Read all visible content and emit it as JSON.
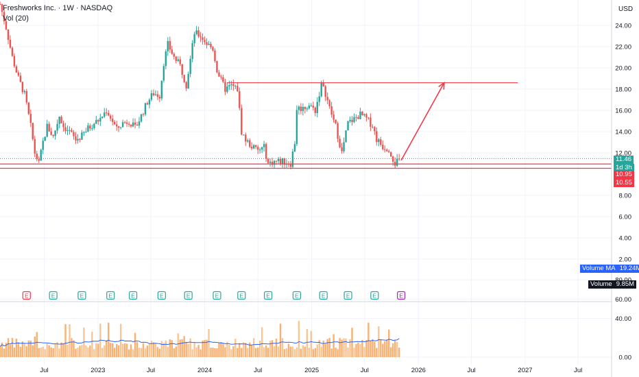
{
  "header": {
    "symbol_title": "Freshworks Inc. · 1W · NASDAQ",
    "volume_indicator": "Vol (20)",
    "currency": "USD"
  },
  "price_axis": {
    "labels": [
      "24.00",
      "22.00",
      "20.00",
      "18.00",
      "16.00",
      "14.00",
      "12.00",
      "8.00",
      "6.00",
      "4.00",
      "2.00"
    ]
  },
  "volume_axis": {
    "labels": [
      "80.00",
      "60.00",
      "40.00",
      "0.00"
    ]
  },
  "time_axis": {
    "labels": [
      "Jul",
      "2023",
      "Jul",
      "2024",
      "Jul",
      "2025",
      "Jul",
      "2026",
      "Jul",
      "2027",
      "Jul"
    ]
  },
  "price_badges": {
    "last_price": "11.46",
    "countdown": "1d 3h",
    "level_upper": "10.95",
    "level_lower": "10.55"
  },
  "volume_badges": {
    "ma_label": "Volume MA",
    "ma_value": "19.24M",
    "vol_label": "Volume",
    "vol_value": "9.85M"
  },
  "earnings_marker": "E",
  "colors": {
    "up": "#26a69a",
    "down": "#ef5350",
    "drawing": "#f23645",
    "volume_up": "#f7c08a",
    "volume_ma": "#2962ff",
    "vol_badge_bg": "#131722",
    "ma_badge_bg": "#2962ff",
    "earnings": "#26a69a"
  },
  "chart_data": {
    "type": "candlestick",
    "price_range": [
      8,
      24.6
    ],
    "date_range": [
      "2022-01-31",
      "2027-12-31"
    ],
    "price_anchors": [
      [
        "2022-01-31",
        26.0
      ],
      [
        "2022-02-21",
        23.8
      ],
      [
        "2022-03-14",
        21.0
      ],
      [
        "2022-04-04",
        19.0
      ],
      [
        "2022-04-25",
        17.5
      ],
      [
        "2022-05-16",
        14.5
      ],
      [
        "2022-05-30",
        12.0
      ],
      [
        "2022-06-13",
        11.0
      ],
      [
        "2022-06-27",
        13.0
      ],
      [
        "2022-07-11",
        14.5
      ],
      [
        "2022-08-01",
        13.5
      ],
      [
        "2022-08-22",
        15.5
      ],
      [
        "2022-09-05",
        14.5
      ],
      [
        "2022-09-26",
        14.0
      ],
      [
        "2022-10-17",
        13.2
      ],
      [
        "2022-11-07",
        13.6
      ],
      [
        "2022-11-28",
        14.3
      ],
      [
        "2022-12-19",
        14.8
      ],
      [
        "2023-01-09",
        15.2
      ],
      [
        "2023-01-30",
        16.0
      ],
      [
        "2023-02-20",
        15.0
      ],
      [
        "2023-03-06",
        14.2
      ],
      [
        "2023-03-27",
        14.8
      ],
      [
        "2023-04-17",
        15.0
      ],
      [
        "2023-05-08",
        14.3
      ],
      [
        "2023-05-29",
        15.5
      ],
      [
        "2023-06-19",
        16.8
      ],
      [
        "2023-07-10",
        17.6
      ],
      [
        "2023-07-31",
        17.4
      ],
      [
        "2023-08-14",
        20.5
      ],
      [
        "2023-08-28",
        22.2
      ],
      [
        "2023-09-18",
        21.0
      ],
      [
        "2023-10-09",
        20.2
      ],
      [
        "2023-10-30",
        18.4
      ],
      [
        "2023-11-13",
        20.8
      ],
      [
        "2023-11-27",
        23.3
      ],
      [
        "2023-12-18",
        23.0
      ],
      [
        "2024-01-08",
        22.3
      ],
      [
        "2024-01-29",
        21.8
      ],
      [
        "2024-02-12",
        19.8
      ],
      [
        "2024-02-26",
        18.8
      ],
      [
        "2024-03-11",
        18.0
      ],
      [
        "2024-04-01",
        18.3
      ],
      [
        "2024-04-22",
        18.0
      ],
      [
        "2024-05-06",
        14.0
      ],
      [
        "2024-05-20",
        13.2
      ],
      [
        "2024-06-10",
        12.6
      ],
      [
        "2024-07-01",
        12.2
      ],
      [
        "2024-07-22",
        12.5
      ],
      [
        "2024-08-05",
        11.0
      ],
      [
        "2024-08-26",
        11.2
      ],
      [
        "2024-09-23",
        11.2
      ],
      [
        "2024-10-21",
        11.0
      ],
      [
        "2024-11-04",
        13.0
      ],
      [
        "2024-11-11",
        16.2
      ],
      [
        "2024-12-02",
        16.2
      ],
      [
        "2024-12-23",
        16.5
      ],
      [
        "2025-01-13",
        16.0
      ],
      [
        "2025-02-03",
        18.4
      ],
      [
        "2025-02-17",
        17.6
      ],
      [
        "2025-03-03",
        16.2
      ],
      [
        "2025-03-24",
        14.5
      ],
      [
        "2025-04-14",
        12.0
      ],
      [
        "2025-05-05",
        14.8
      ],
      [
        "2025-05-26",
        15.2
      ],
      [
        "2025-06-16",
        15.6
      ],
      [
        "2025-07-07",
        15.2
      ],
      [
        "2025-07-28",
        14.6
      ],
      [
        "2025-08-11",
        13.3
      ],
      [
        "2025-09-01",
        12.6
      ],
      [
        "2025-09-22",
        12.4
      ],
      [
        "2025-10-13",
        11.0
      ],
      [
        "2025-10-27",
        11.46
      ]
    ],
    "horizontal_levels": [
      18.6,
      10.95,
      10.55
    ],
    "trend_line": {
      "from": [
        "2024-03-18",
        18.6
      ],
      "to": [
        "2026-12-07",
        18.6
      ]
    },
    "arrow": {
      "from": [
        "2025-11-03",
        11.3
      ],
      "to": [
        "2026-03-30",
        18.6
      ]
    },
    "volume_range": [
      0,
      100
    ],
    "volume_ma_last": 19.24,
    "volume_last": 9.85,
    "earnings_dates": [
      "2022-05-02",
      "2022-08-01",
      "2022-11-07",
      "2023-02-13",
      "2023-05-01",
      "2023-08-07",
      "2023-11-06",
      "2024-02-12",
      "2024-05-06",
      "2024-08-05",
      "2024-11-11",
      "2025-02-10",
      "2025-05-05",
      "2025-08-04",
      "2025-11-03"
    ]
  }
}
